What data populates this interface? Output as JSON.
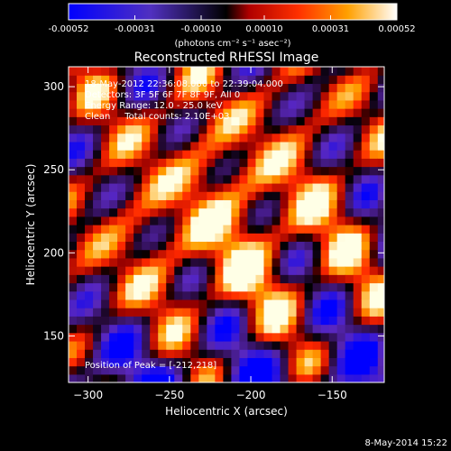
{
  "chart_data": {
    "type": "heatmap",
    "title": "Reconstructed RHESSI Image",
    "xlabel": "Heliocentric X (arcsec)",
    "ylabel": "Heliocentric Y (arcsec)",
    "xlim": [
      -312,
      -118
    ],
    "ylim": [
      122,
      312
    ],
    "x_ticks": [
      -300,
      -250,
      -200,
      -150
    ],
    "y_ticks": [
      150,
      200,
      250,
      300
    ],
    "colorbar": {
      "range": [
        -0.00052,
        0.00052
      ],
      "ticks": [
        "-0.00052",
        "-0.00031",
        "-0.00010",
        "0.00010",
        "0.00031",
        "0.00052"
      ],
      "units_label": "(photons cm⁻² s⁻¹ asec⁻²)"
    },
    "annotations": {
      "time": "18-May-2012 22:36:08.000 to 22:39:04.000",
      "detectors": "Detectors: 3F 5F 6F 7F 8F 9F, All 0",
      "energy": "Energy Range: 12.0 - 25.0 keV",
      "clean": "Clean     Total counts: 2.10E+03",
      "peak": "Position of Peak = [-212,218]"
    },
    "peak": [
      -212,
      218
    ],
    "footer_date": "8-May-2014 15:22"
  }
}
